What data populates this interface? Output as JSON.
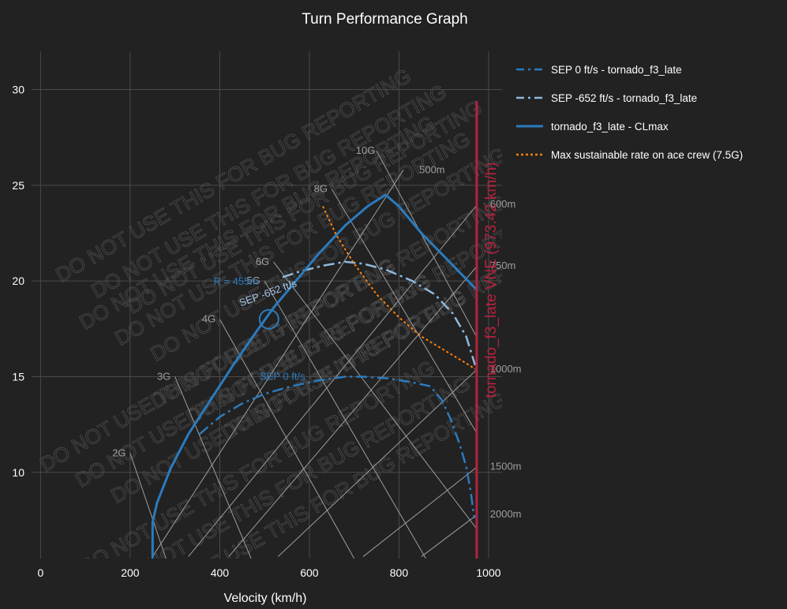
{
  "page": {
    "background": "#222222"
  },
  "chart_data": {
    "type": "line",
    "title": "Turn Performance Graph",
    "xlabel": "Velocity (km/h)",
    "ylabel": "",
    "xlim": [
      -20,
      1030
    ],
    "ylim": [
      5.5,
      32
    ],
    "xticks": [
      0,
      200,
      400,
      600,
      800,
      1000
    ],
    "yticks": [
      10,
      15,
      20,
      25,
      30
    ],
    "grid": true,
    "legend_position": "right",
    "watermark": "DO NOT USE THIS FOR BUG REPORTING",
    "series": [
      {
        "name": "SEP 0 ft/s - tornado_f3_late",
        "style": "dashdot",
        "color": "#2b7bbd",
        "label": "SEP 0 ft/s",
        "x": [
          355,
          400,
          450,
          500,
          560,
          620,
          680,
          720,
          780,
          830,
          870,
          895,
          915,
          935,
          950,
          960,
          968
        ],
        "y": [
          12.0,
          12.9,
          13.6,
          14.1,
          14.5,
          14.8,
          15.0,
          15.0,
          14.9,
          14.7,
          14.5,
          13.8,
          12.8,
          11.5,
          10.3,
          9.0,
          7.6
        ]
      },
      {
        "name": "SEP -652 ft/s - tornado_f3_late",
        "style": "dashdot",
        "color": "#8fb8dd",
        "label": "SEP -652 ft/s",
        "x": [
          540,
          580,
          630,
          680,
          720,
          770,
          830,
          880,
          920,
          950,
          970
        ],
        "y": [
          20.2,
          20.5,
          20.8,
          21.0,
          20.9,
          20.6,
          20.0,
          19.3,
          18.3,
          17.1,
          15.6
        ]
      },
      {
        "name": "tornado_f3_late - CLmax",
        "style": "solid",
        "color": "#2b7bbd",
        "x": [
          250,
          250,
          260,
          290,
          330,
          380,
          430,
          480,
          520,
          570,
          620,
          680,
          730,
          770,
          800,
          850,
          900,
          975
        ],
        "y": [
          5.5,
          7.4,
          8.4,
          10.2,
          12.0,
          13.8,
          15.6,
          17.3,
          18.6,
          20.0,
          21.4,
          22.9,
          23.9,
          24.5,
          23.9,
          22.5,
          21.3,
          19.5
        ]
      },
      {
        "name": "Max sustainable rate on ace crew (7.5G)",
        "style": "dotted",
        "color": "#ff7f0e",
        "x": [
          630,
          660,
          700,
          750,
          800,
          850,
          900,
          950,
          970
        ],
        "y": [
          23.9,
          22.4,
          20.9,
          19.3,
          18.1,
          17.1,
          16.4,
          15.7,
          15.4
        ]
      }
    ],
    "vne": {
      "x": 973.42,
      "label": "tornado_f3_late VNE (973.42 km/h)",
      "color": "#b5223e"
    },
    "marker": {
      "x": 510,
      "y": 18.0,
      "label": "R = 455m"
    },
    "g_lines": {
      "color": "#9e9e9e",
      "items": [
        {
          "label": "2G",
          "x1": 200,
          "y1": 11.0,
          "x2": 280,
          "y2": 5.5
        },
        {
          "label": "3G",
          "x1": 300,
          "y1": 15.0,
          "x2": 470,
          "y2": 5.5
        },
        {
          "label": "4G",
          "x1": 400,
          "y1": 18.0,
          "x2": 700,
          "y2": 5.5
        },
        {
          "label": "5G",
          "x1": 500,
          "y1": 20.0,
          "x2": 860,
          "y2": 5.5
        },
        {
          "label": "6G",
          "x1": 520,
          "y1": 21.0,
          "x2": 975,
          "y2": 7.0
        },
        {
          "label": "8G",
          "x1": 650,
          "y1": 24.8,
          "x2": 975,
          "y2": 12.0
        },
        {
          "label": "10G",
          "x1": 750,
          "y1": 26.8,
          "x2": 975,
          "y2": 17.0
        }
      ]
    },
    "radius_lines": {
      "color": "#9e9e9e",
      "items": [
        {
          "label": "500m",
          "x1": 250,
          "y1": 5.6,
          "x2": 810,
          "y2": 25.8
        },
        {
          "label": "600m",
          "x1": 330,
          "y1": 5.6,
          "x2": 975,
          "y2": 24.0
        },
        {
          "label": "750m",
          "x1": 420,
          "y1": 5.6,
          "x2": 975,
          "y2": 20.8
        },
        {
          "label": "1000m",
          "x1": 530,
          "y1": 5.6,
          "x2": 975,
          "y2": 15.4
        },
        {
          "label": "1500m",
          "x1": 720,
          "y1": 5.6,
          "x2": 975,
          "y2": 10.3
        },
        {
          "label": "2000m",
          "x1": 850,
          "y1": 5.6,
          "x2": 975,
          "y2": 7.8
        }
      ]
    }
  }
}
